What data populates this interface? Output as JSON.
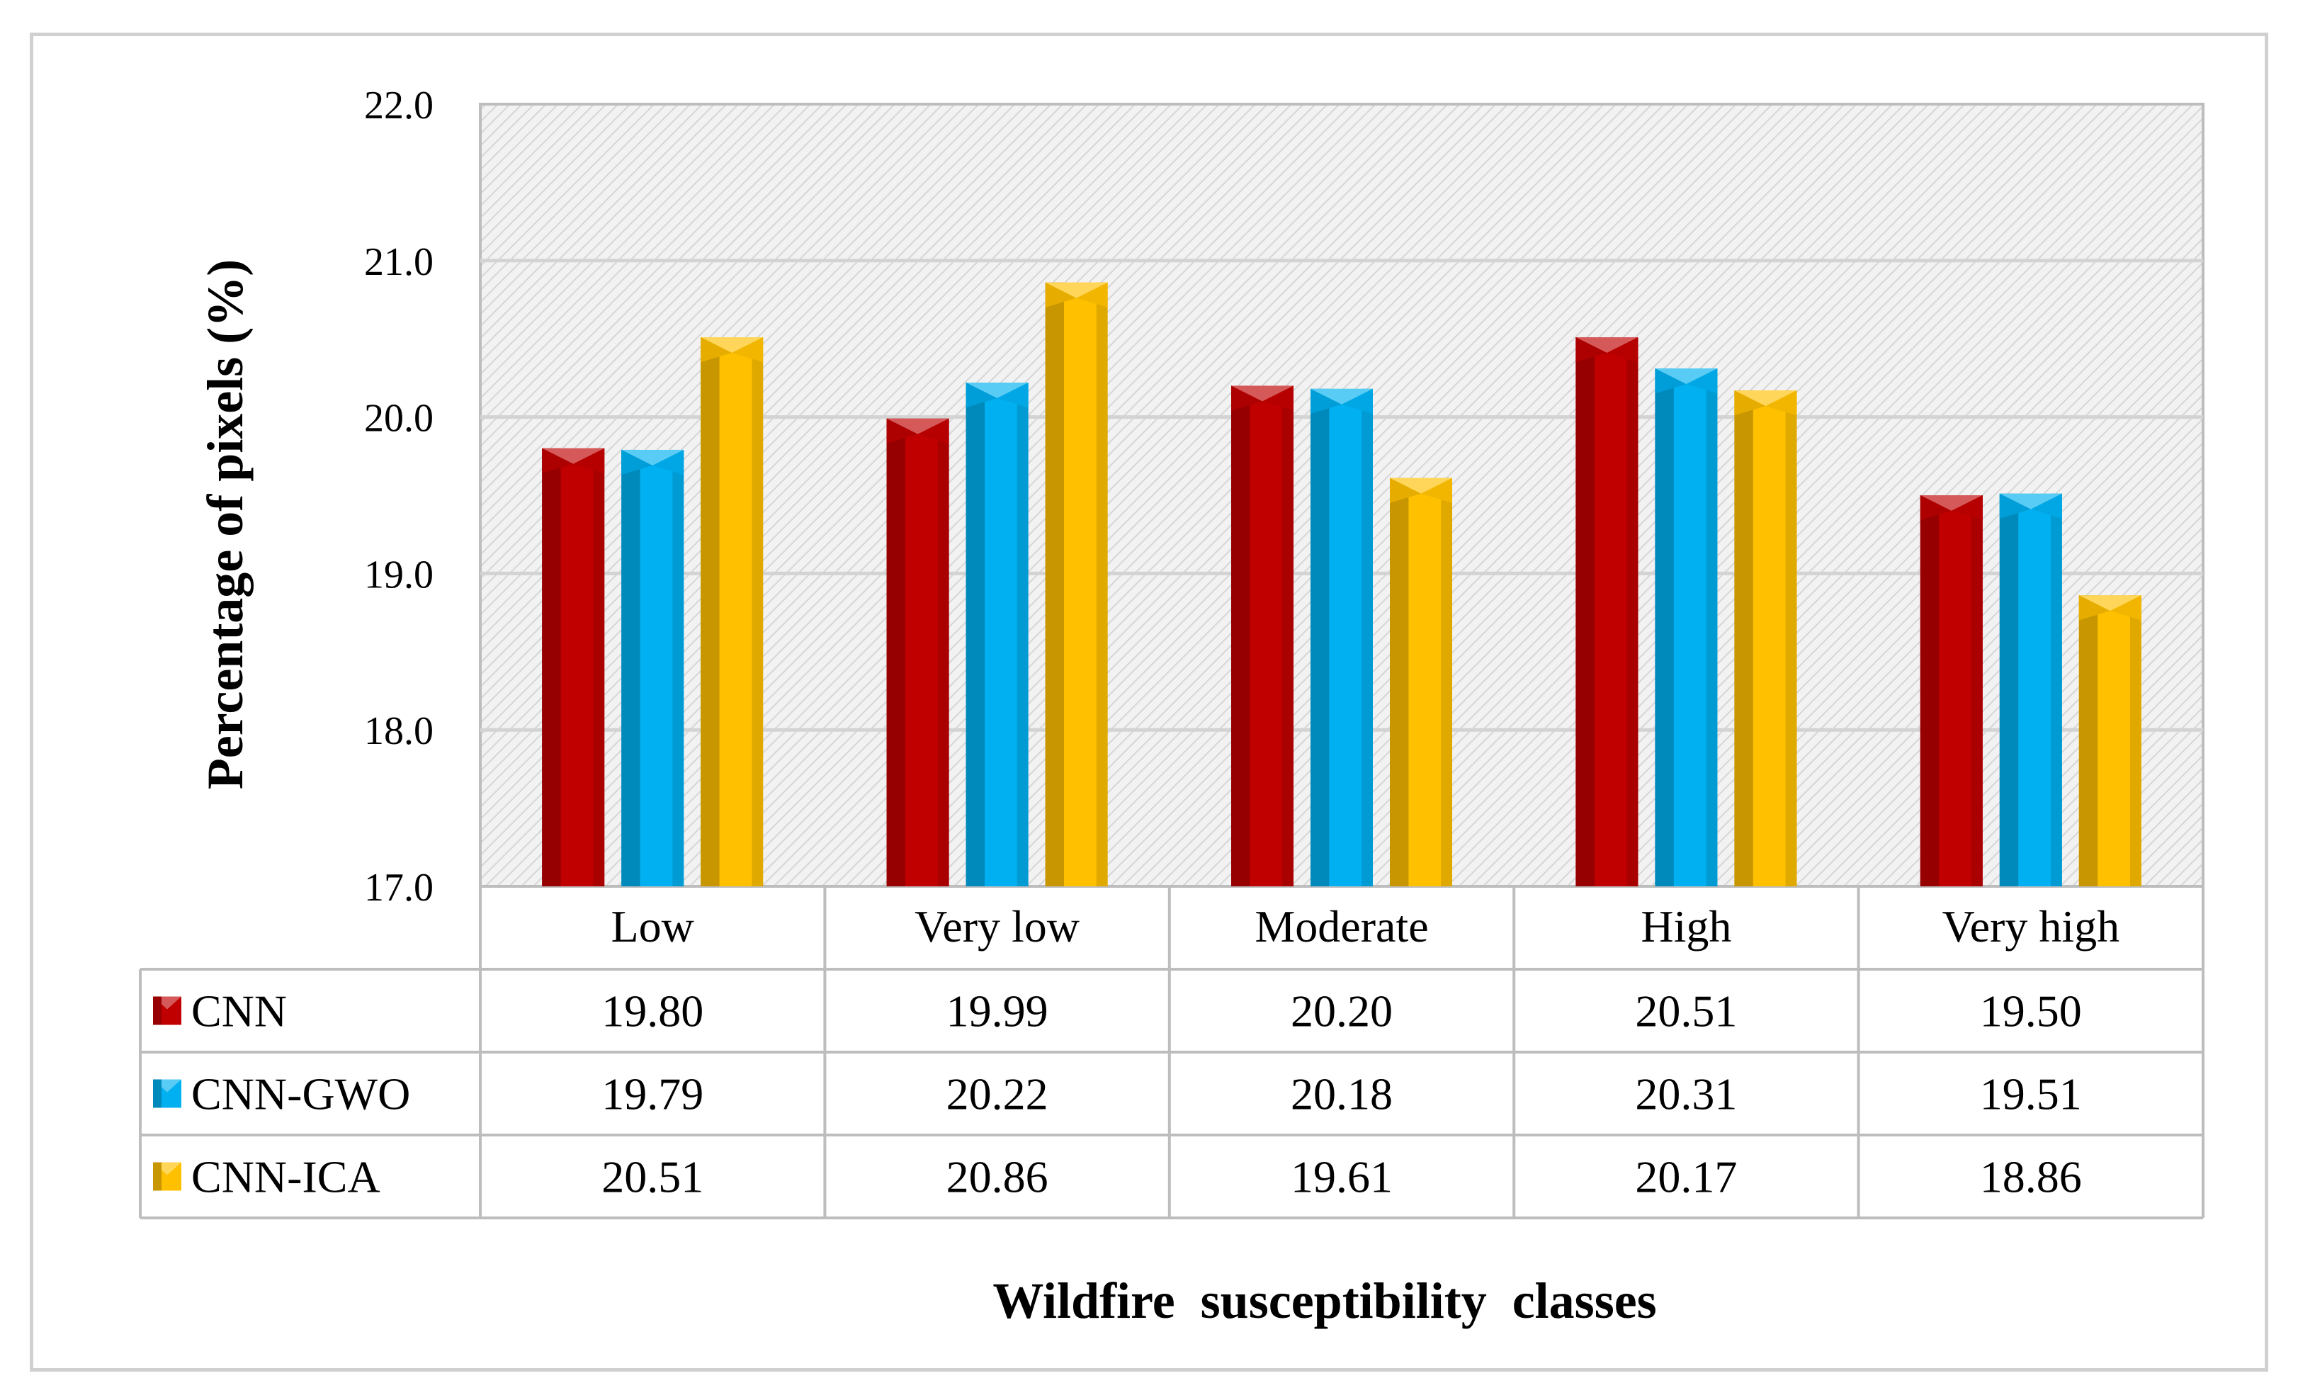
{
  "chart_data": {
    "type": "bar",
    "title": "",
    "xlabel": "Wildfire  susceptibility  classes",
    "ylabel": "Percentage of pixels (%)",
    "ylim": [
      17.0,
      22.0
    ],
    "yticks": [
      "17.0",
      "18.0",
      "19.0",
      "20.0",
      "21.0",
      "22.0"
    ],
    "grid": true,
    "legend": "data-table-left",
    "categories": [
      "Low",
      "Very low",
      "Moderate",
      "High",
      "Very high"
    ],
    "series": [
      {
        "name": "CNN",
        "color": "#c00000",
        "values": [
          19.8,
          19.99,
          20.2,
          20.51,
          19.5
        ],
        "labels": [
          "19.80",
          "19.99",
          "20.20",
          "20.51",
          "19.50"
        ]
      },
      {
        "name": "CNN-GWO",
        "color": "#00b0f0",
        "values": [
          19.79,
          20.22,
          20.18,
          20.31,
          19.51
        ],
        "labels": [
          "19.79",
          "20.22",
          "20.18",
          "20.31",
          "19.51"
        ]
      },
      {
        "name": "CNN-ICA",
        "color": "#ffc000",
        "values": [
          20.51,
          20.86,
          19.61,
          20.17,
          18.86
        ],
        "labels": [
          "20.51",
          "20.86",
          "19.61",
          "20.17",
          "18.86"
        ]
      }
    ]
  }
}
